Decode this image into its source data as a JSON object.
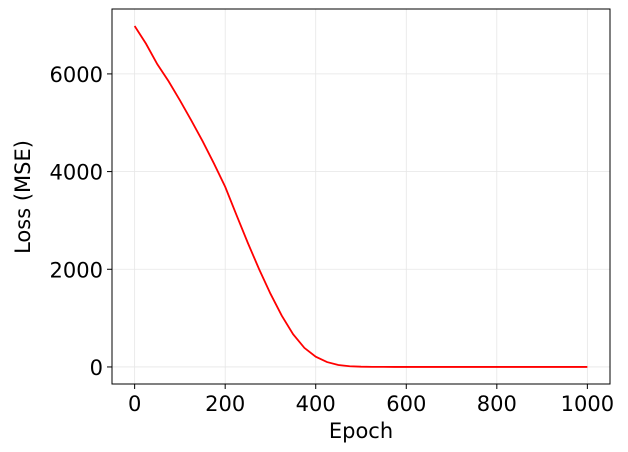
{
  "chart_data": {
    "type": "line",
    "xlabel": "Epoch",
    "ylabel": "Loss (MSE)",
    "x": [
      0,
      25,
      50,
      75,
      100,
      125,
      150,
      175,
      200,
      225,
      250,
      275,
      300,
      325,
      350,
      375,
      400,
      425,
      450,
      475,
      500,
      525,
      550,
      575,
      600,
      625,
      650,
      675,
      700,
      725,
      750,
      775,
      800,
      825,
      850,
      875,
      900,
      925,
      950,
      975,
      1000
    ],
    "series": [
      {
        "name": "Loss",
        "color": "#ff0000",
        "values": [
          6980,
          6620,
          6200,
          5850,
          5460,
          5050,
          4625,
          4170,
          3690,
          3110,
          2540,
          2000,
          1500,
          1050,
          670,
          390,
          210,
          100,
          40,
          15,
          5,
          2,
          1,
          0,
          0,
          0,
          0,
          0,
          0,
          0,
          0,
          0,
          0,
          0,
          0,
          0,
          0,
          0,
          0,
          0,
          0
        ]
      }
    ],
    "xlim": [
      -50,
      1050
    ],
    "xticks": [
      0,
      200,
      400,
      600,
      800,
      1000
    ],
    "ylim": [
      -349,
      7329
    ],
    "yticks": [
      0,
      2000,
      4000,
      6000
    ],
    "grid": true
  }
}
